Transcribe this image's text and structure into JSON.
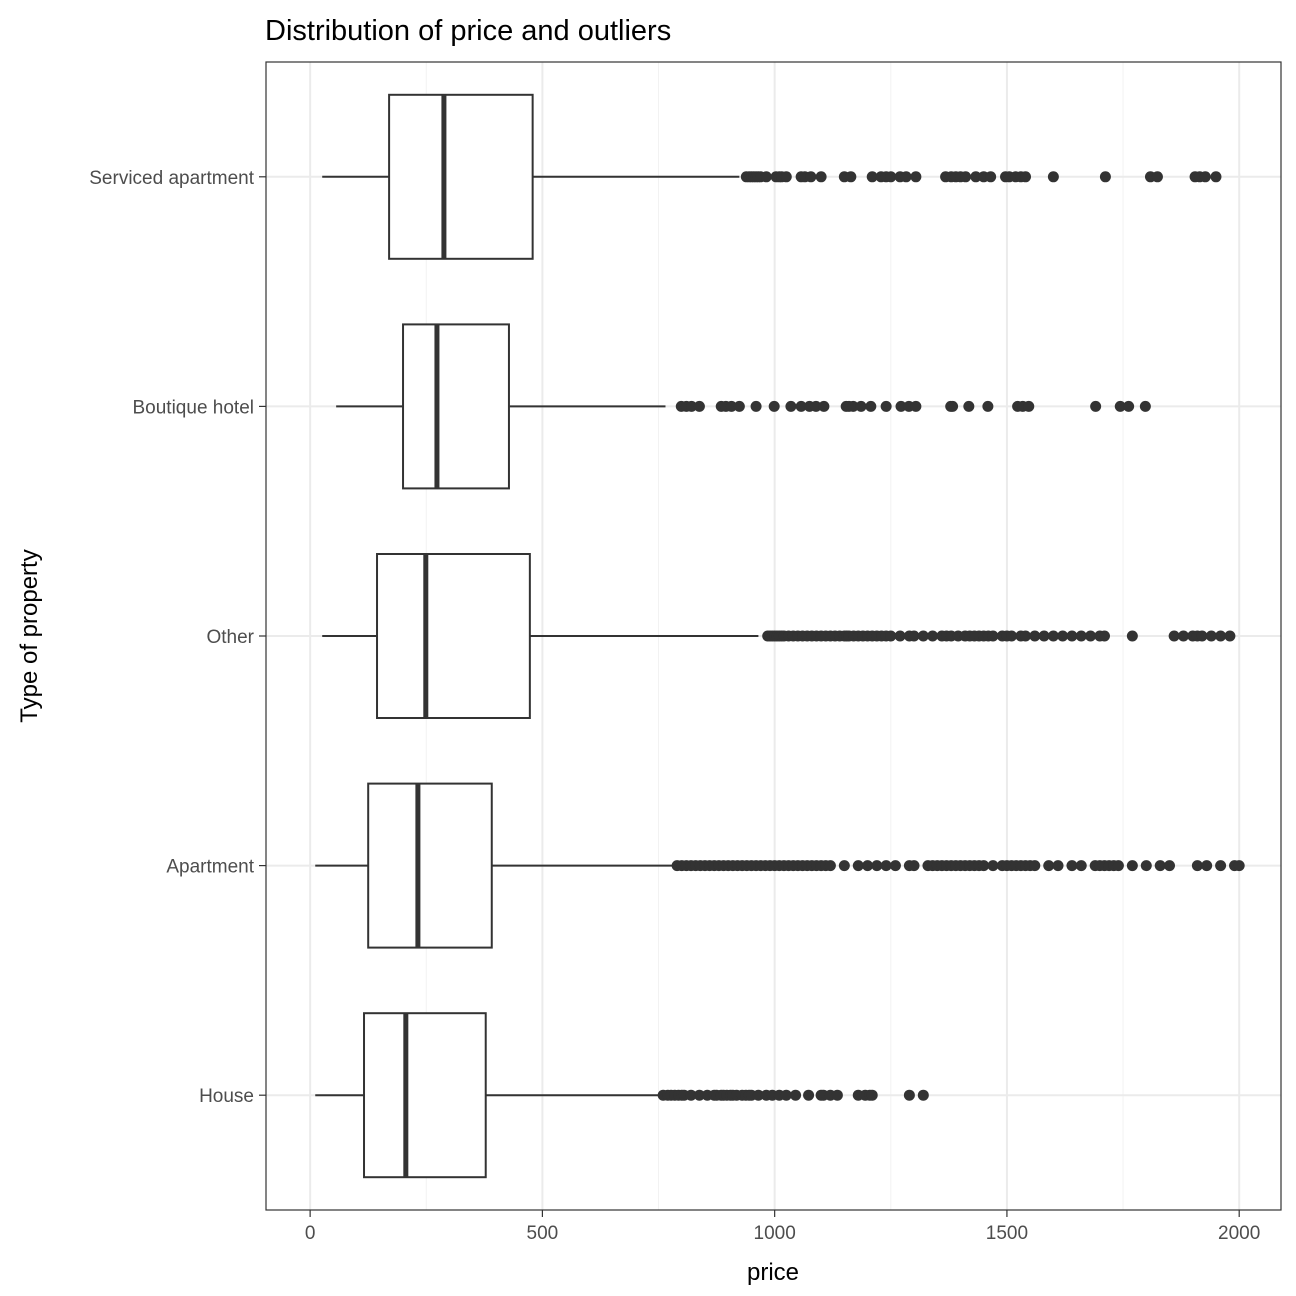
{
  "chart_data": {
    "type": "boxplot",
    "title": "Distribution of price and outliers",
    "xlabel": "price",
    "ylabel": "Type of property",
    "xlim": [
      -95,
      2090
    ],
    "xticks": [
      0,
      500,
      1000,
      1500,
      2000
    ],
    "xtick_labels": [
      "0",
      "500",
      "1000",
      "1500",
      "2000"
    ],
    "grid": true,
    "orientation": "horizontal",
    "categories": [
      "Serviced apartment",
      "Boutique hotel",
      "Other",
      "Apartment",
      "House"
    ],
    "boxes": [
      {
        "name": "Serviced apartment",
        "whisker_low": 26,
        "q1": 170,
        "median": 288,
        "q3": 479,
        "whisker_high": 924,
        "outliers": [
          939,
          945,
          950,
          955,
          960,
          965,
          970,
          982,
          1003,
          1010,
          1015,
          1025,
          1057,
          1065,
          1078,
          1100,
          1150,
          1164,
          1210,
          1229,
          1240,
          1250,
          1270,
          1283,
          1304,
          1368,
          1380,
          1390,
          1400,
          1411,
          1433,
          1450,
          1465,
          1497,
          1505,
          1519,
          1530,
          1540,
          1600,
          1712,
          1809,
          1824,
          1905,
          1915,
          1927,
          1950
        ]
      },
      {
        "name": "Boutique hotel",
        "whisker_low": 56,
        "q1": 200,
        "median": 273,
        "q3": 428,
        "whisker_high": 765,
        "outliers": [
          799,
          810,
          821,
          838,
          885,
          895,
          907,
          924,
          960,
          999,
          1035,
          1057,
          1075,
          1089,
          1106,
          1154,
          1160,
          1169,
          1186,
          1207,
          1240,
          1272,
          1289,
          1304,
          1379,
          1383,
          1418,
          1459,
          1523,
          1534,
          1547,
          1691,
          1744,
          1762,
          1798
        ]
      },
      {
        "name": "Other",
        "whisker_low": 26,
        "q1": 144,
        "median": 249,
        "q3": 473,
        "whisker_high": 965,
        "outliers": [
          985,
          990,
          995,
          1000,
          1005,
          1010,
          1015,
          1020,
          1030,
          1040,
          1050,
          1060,
          1070,
          1080,
          1090,
          1100,
          1110,
          1120,
          1130,
          1140,
          1150,
          1155,
          1160,
          1170,
          1180,
          1190,
          1200,
          1210,
          1220,
          1230,
          1240,
          1250,
          1270,
          1290,
          1300,
          1320,
          1340,
          1360,
          1370,
          1380,
          1395,
          1410,
          1420,
          1430,
          1440,
          1450,
          1460,
          1470,
          1490,
          1500,
          1510,
          1530,
          1540,
          1560,
          1580,
          1600,
          1620,
          1640,
          1660,
          1680,
          1700,
          1710,
          1770,
          1860,
          1880,
          1900,
          1910,
          1920,
          1940,
          1960,
          1980
        ]
      },
      {
        "name": "Apartment",
        "whisker_low": 11,
        "q1": 125,
        "median": 232,
        "q3": 391,
        "whisker_high": 782,
        "outliers": [
          790,
          800,
          810,
          820,
          830,
          840,
          850,
          860,
          870,
          880,
          890,
          900,
          910,
          920,
          930,
          940,
          950,
          960,
          970,
          980,
          990,
          1000,
          1010,
          1020,
          1030,
          1040,
          1050,
          1060,
          1070,
          1080,
          1090,
          1100,
          1110,
          1120,
          1150,
          1180,
          1200,
          1220,
          1240,
          1260,
          1290,
          1300,
          1330,
          1340,
          1350,
          1360,
          1370,
          1380,
          1390,
          1400,
          1410,
          1420,
          1430,
          1440,
          1450,
          1470,
          1490,
          1500,
          1510,
          1520,
          1530,
          1540,
          1550,
          1560,
          1590,
          1610,
          1640,
          1660,
          1690,
          1700,
          1710,
          1720,
          1730,
          1740,
          1770,
          1800,
          1830,
          1850,
          1910,
          1930,
          1960,
          1990,
          2000
        ]
      },
      {
        "name": "House",
        "whisker_low": 11,
        "q1": 116,
        "median": 206,
        "q3": 378,
        "whisker_high": 756,
        "outliers": [
          760,
          770,
          777,
          785,
          793,
          800,
          805,
          820,
          838,
          855,
          870,
          875,
          885,
          890,
          897,
          905,
          910,
          918,
          930,
          938,
          945,
          950,
          965,
          982,
          995,
          1010,
          1025,
          1045,
          1073,
          1100,
          1105,
          1120,
          1135,
          1180,
          1195,
          1205,
          1210,
          1290,
          1320
        ]
      }
    ]
  }
}
